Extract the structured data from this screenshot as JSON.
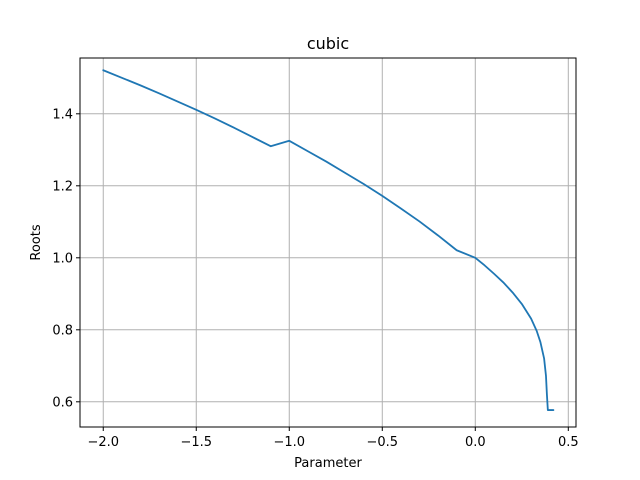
{
  "chart_data": {
    "type": "line",
    "title": "cubic",
    "xlabel": "Parameter",
    "ylabel": "Roots",
    "xlim": [
      -2.125,
      2.5
    ],
    "ylim": [
      0.53,
      1.555
    ],
    "xlim_display": [
      -2.125,
      0.5414
    ],
    "xticks": [
      -2.0,
      -1.5,
      -1.0,
      -0.5,
      0.0,
      0.5
    ],
    "xtick_labels": [
      "−2.0",
      "−1.5",
      "−1.0",
      "−0.5",
      "0.0",
      "0.5"
    ],
    "yticks": [
      0.6,
      0.8,
      1.0,
      1.2,
      1.4
    ],
    "ytick_labels": [
      "0.6",
      "0.8",
      "1.0",
      "1.2",
      "1.4"
    ],
    "grid": true,
    "series": [
      {
        "color": "#1f77b4",
        "x": [
          -2.0,
          -1.9,
          -1.8,
          -1.7,
          -1.6,
          -1.5,
          -1.4,
          -1.3,
          -1.2,
          -1.1,
          -1.0,
          -0.9,
          -0.8,
          -0.7,
          -0.6,
          -0.5,
          -0.4,
          -0.3,
          -0.2,
          -0.1,
          0.0,
          0.05,
          0.1,
          0.15,
          0.2,
          0.25,
          0.3,
          0.33,
          0.35,
          0.37,
          0.38,
          0.385,
          0.39,
          0.42
        ],
        "y": [
          1.521,
          1.5,
          1.479,
          1.457,
          1.434,
          1.411,
          1.387,
          1.362,
          1.336,
          1.31,
          1.325,
          1.296,
          1.267,
          1.236,
          1.205,
          1.172,
          1.137,
          1.101,
          1.062,
          1.021,
          1.0,
          0.979,
          0.956,
          0.932,
          0.904,
          0.872,
          0.831,
          0.797,
          0.766,
          0.72,
          0.672,
          0.62,
          0.577,
          0.577
        ]
      }
    ]
  }
}
